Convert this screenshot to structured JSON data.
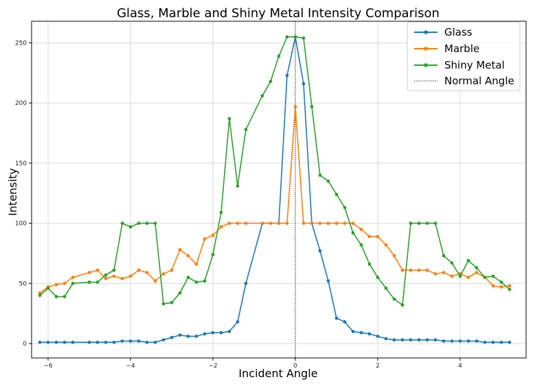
{
  "chart_data": {
    "type": "line",
    "title": "Glass, Marble and Shiny Metal Intensity Comparison",
    "xlabel": "Incident Angle",
    "ylabel": "Intensity",
    "xlim": [
      -6.4,
      5.6
    ],
    "ylim": [
      -12,
      268
    ],
    "xticks": [
      -6,
      -4,
      -2,
      0,
      2,
      4
    ],
    "xtick_labels": [
      "−6",
      "−4",
      "−2",
      "0",
      "2",
      "4"
    ],
    "yticks": [
      0,
      50,
      100,
      150,
      200,
      250
    ],
    "ytick_labels": [
      "0",
      "50",
      "100",
      "150",
      "200",
      "250"
    ],
    "grid": true,
    "legend_position": "top-right",
    "normal_angle": {
      "name": "Normal Angle",
      "x": 0,
      "color": "#333333",
      "style": "dotted"
    },
    "series": [
      {
        "name": "Glass",
        "color": "#1f77b4",
        "points": [
          [
            -6.2,
            1
          ],
          [
            -6.0,
            1
          ],
          [
            -5.8,
            1
          ],
          [
            -5.6,
            1
          ],
          [
            -5.4,
            1
          ],
          [
            -5.0,
            1
          ],
          [
            -4.8,
            1
          ],
          [
            -4.6,
            1
          ],
          [
            -4.4,
            1
          ],
          [
            -4.2,
            2
          ],
          [
            -4.0,
            2
          ],
          [
            -3.8,
            2
          ],
          [
            -3.6,
            1
          ],
          [
            -3.4,
            1
          ],
          [
            -3.2,
            3
          ],
          [
            -3.0,
            5
          ],
          [
            -2.8,
            7
          ],
          [
            -2.6,
            6
          ],
          [
            -2.4,
            6
          ],
          [
            -2.2,
            8
          ],
          [
            -2.0,
            9
          ],
          [
            -1.8,
            9
          ],
          [
            -1.6,
            10
          ],
          [
            -1.4,
            18
          ],
          [
            -1.2,
            50
          ],
          [
            -0.8,
            100
          ],
          [
            -0.4,
            100
          ],
          [
            -0.2,
            223
          ],
          [
            0.0,
            255
          ],
          [
            0.2,
            216
          ],
          [
            0.4,
            100
          ],
          [
            0.6,
            77
          ],
          [
            0.8,
            52
          ],
          [
            1.0,
            21
          ],
          [
            1.2,
            18
          ],
          [
            1.4,
            10
          ],
          [
            1.6,
            9
          ],
          [
            1.8,
            8
          ],
          [
            2.0,
            6
          ],
          [
            2.2,
            4
          ],
          [
            2.4,
            3
          ],
          [
            2.6,
            3
          ],
          [
            2.8,
            3
          ],
          [
            3.0,
            3
          ],
          [
            3.2,
            3
          ],
          [
            3.4,
            3
          ],
          [
            3.6,
            2
          ],
          [
            3.8,
            2
          ],
          [
            4.0,
            2
          ],
          [
            4.2,
            2
          ],
          [
            4.4,
            2
          ],
          [
            4.6,
            1
          ],
          [
            4.8,
            1
          ],
          [
            5.0,
            1
          ],
          [
            5.2,
            1
          ]
        ]
      },
      {
        "name": "Marble",
        "color": "#ff7f0e",
        "points": [
          [
            -6.2,
            42
          ],
          [
            -6.0,
            47
          ],
          [
            -5.8,
            49
          ],
          [
            -5.6,
            50
          ],
          [
            -5.4,
            55
          ],
          [
            -5.0,
            59
          ],
          [
            -4.8,
            61
          ],
          [
            -4.6,
            54
          ],
          [
            -4.4,
            56
          ],
          [
            -4.2,
            54
          ],
          [
            -4.0,
            56
          ],
          [
            -3.8,
            61
          ],
          [
            -3.6,
            59
          ],
          [
            -3.4,
            52
          ],
          [
            -3.2,
            58
          ],
          [
            -3.0,
            61
          ],
          [
            -2.8,
            78
          ],
          [
            -2.6,
            73
          ],
          [
            -2.4,
            66
          ],
          [
            -2.2,
            87
          ],
          [
            -2.0,
            90
          ],
          [
            -1.8,
            97
          ],
          [
            -1.6,
            100
          ],
          [
            -1.4,
            100
          ],
          [
            -1.2,
            100
          ],
          [
            -0.8,
            100
          ],
          [
            -0.6,
            100
          ],
          [
            -0.4,
            100
          ],
          [
            -0.2,
            100
          ],
          [
            0.0,
            197
          ],
          [
            0.2,
            100
          ],
          [
            0.4,
            100
          ],
          [
            0.6,
            100
          ],
          [
            0.8,
            100
          ],
          [
            1.0,
            100
          ],
          [
            1.2,
            100
          ],
          [
            1.4,
            100
          ],
          [
            1.6,
            95
          ],
          [
            1.8,
            89
          ],
          [
            2.0,
            89
          ],
          [
            2.2,
            82
          ],
          [
            2.4,
            73
          ],
          [
            2.6,
            61
          ],
          [
            2.8,
            61
          ],
          [
            3.0,
            61
          ],
          [
            3.2,
            61
          ],
          [
            3.4,
            58
          ],
          [
            3.6,
            59
          ],
          [
            3.8,
            56
          ],
          [
            4.0,
            58
          ],
          [
            4.2,
            55
          ],
          [
            4.4,
            59
          ],
          [
            4.6,
            55
          ],
          [
            4.8,
            48
          ],
          [
            5.0,
            47
          ],
          [
            5.2,
            48
          ]
        ]
      },
      {
        "name": "Shiny Metal",
        "color": "#2ca02c",
        "points": [
          [
            -6.2,
            40
          ],
          [
            -6.0,
            46
          ],
          [
            -5.8,
            39
          ],
          [
            -5.6,
            39
          ],
          [
            -5.4,
            50
          ],
          [
            -5.0,
            51
          ],
          [
            -4.8,
            51
          ],
          [
            -4.6,
            57
          ],
          [
            -4.4,
            61
          ],
          [
            -4.2,
            100
          ],
          [
            -4.0,
            97
          ],
          [
            -3.8,
            100
          ],
          [
            -3.6,
            100
          ],
          [
            -3.4,
            100
          ],
          [
            -3.2,
            33
          ],
          [
            -3.0,
            34
          ],
          [
            -2.8,
            42
          ],
          [
            -2.6,
            55
          ],
          [
            -2.4,
            51
          ],
          [
            -2.2,
            52
          ],
          [
            -2.0,
            74
          ],
          [
            -1.8,
            109
          ],
          [
            -1.6,
            187
          ],
          [
            -1.4,
            131
          ],
          [
            -1.2,
            178
          ],
          [
            -0.8,
            206
          ],
          [
            -0.6,
            218
          ],
          [
            -0.4,
            239
          ],
          [
            -0.2,
            255
          ],
          [
            0.0,
            255
          ],
          [
            0.2,
            254
          ],
          [
            0.4,
            197
          ],
          [
            0.6,
            140
          ],
          [
            0.8,
            135
          ],
          [
            1.0,
            124
          ],
          [
            1.2,
            113
          ],
          [
            1.4,
            92
          ],
          [
            1.6,
            82
          ],
          [
            1.8,
            66
          ],
          [
            2.0,
            55
          ],
          [
            2.2,
            46
          ],
          [
            2.4,
            37
          ],
          [
            2.6,
            32
          ],
          [
            2.8,
            100
          ],
          [
            3.0,
            100
          ],
          [
            3.2,
            100
          ],
          [
            3.4,
            100
          ],
          [
            3.6,
            73
          ],
          [
            3.8,
            67
          ],
          [
            4.0,
            56
          ],
          [
            4.2,
            69
          ],
          [
            4.4,
            63
          ],
          [
            4.6,
            55
          ],
          [
            4.8,
            56
          ],
          [
            5.0,
            51
          ],
          [
            5.2,
            45
          ]
        ]
      }
    ]
  }
}
